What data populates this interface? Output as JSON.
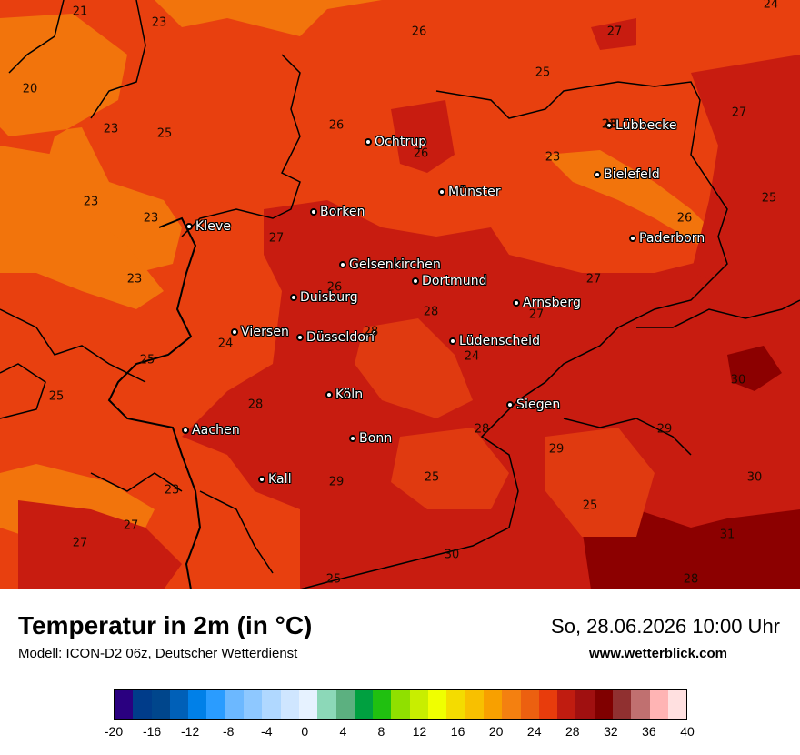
{
  "map": {
    "cities": [
      {
        "name": "Lübbecke"
      },
      {
        "name": "Ochtrup"
      },
      {
        "name": "Bielefeld"
      },
      {
        "name": "Münster"
      },
      {
        "name": "Borken"
      },
      {
        "name": "Kleve"
      },
      {
        "name": "Paderborn"
      },
      {
        "name": "Gelsenkirchen"
      },
      {
        "name": "Dortmund"
      },
      {
        "name": "Duisburg"
      },
      {
        "name": "Arnsberg"
      },
      {
        "name": "Viersen"
      },
      {
        "name": "Düsseldorf"
      },
      {
        "name": "Lüdenscheid"
      },
      {
        "name": "Köln"
      },
      {
        "name": "Siegen"
      },
      {
        "name": "Aachen"
      },
      {
        "name": "Bonn"
      },
      {
        "name": "Kall"
      }
    ],
    "temperature_labels": [
      "21",
      "23",
      "26",
      "27",
      "24",
      "20",
      "23",
      "25",
      "26",
      "26",
      "25",
      "27",
      "23",
      "23",
      "23",
      "25",
      "23",
      "26",
      "27",
      "23",
      "27",
      "28",
      "27",
      "24",
      "25",
      "26",
      "25",
      "28",
      "24",
      "28",
      "30",
      "29",
      "29",
      "28",
      "25",
      "29",
      "23",
      "30",
      "27",
      "27",
      "30",
      "25",
      "31",
      "28",
      "25",
      "28"
    ]
  },
  "footer": {
    "title": "Temperatur in 2m (in °C)",
    "model": "Modell: ICON-D2 06z, Deutscher Wetterdienst",
    "datetime": "So, 28.06.2026 10:00 Uhr",
    "website": "www.wetterblick.com"
  },
  "legend": {
    "colors": [
      "#2a0080",
      "#003c8a",
      "#00468c",
      "#0060b8",
      "#0080e8",
      "#2a9cff",
      "#6cb8ff",
      "#8ec8ff",
      "#b0d8ff",
      "#cfe6ff",
      "#e6f2ff",
      "#8cd8b8",
      "#5cb080",
      "#00a040",
      "#20c010",
      "#90e000",
      "#c8ee00",
      "#f0ff00",
      "#f4dc00",
      "#f8c000",
      "#f8a000",
      "#f48010",
      "#ec6010",
      "#e83c0c",
      "#c01c10",
      "#a01010",
      "#800000",
      "#903030",
      "#c07070",
      "#ffb4b4",
      "#ffe0e0"
    ],
    "tick_labels": [
      "-20",
      "-16",
      "-12",
      "-8",
      "-4",
      "0",
      "4",
      "8",
      "12",
      "16",
      "20",
      "24",
      "28",
      "32",
      "36",
      "40"
    ]
  }
}
